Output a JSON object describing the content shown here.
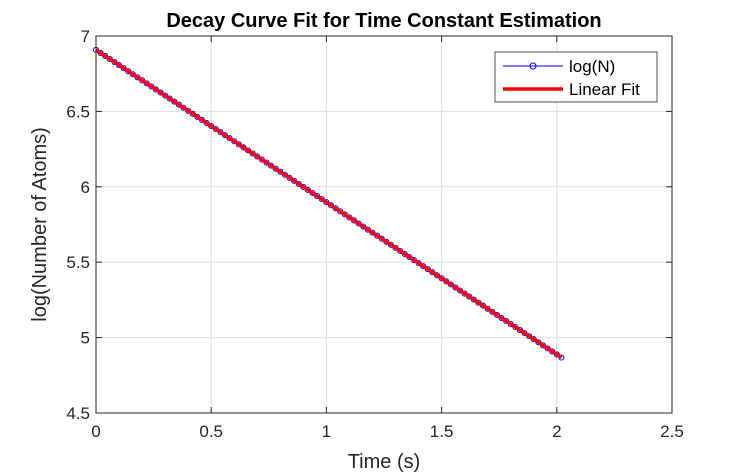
{
  "chart_data": {
    "type": "line",
    "title": "Decay Curve Fit for Time Constant Estimation",
    "xlabel": "Time (s)",
    "ylabel": "log(Number of Atoms)",
    "xlim": [
      0,
      2.5
    ],
    "ylim": [
      4.5,
      7
    ],
    "xticks": [
      0,
      0.5,
      1,
      1.5,
      2,
      2.5
    ],
    "yticks": [
      4.5,
      5,
      5.5,
      6,
      6.5,
      7
    ],
    "xtick_labels": [
      "0",
      "0.5",
      "1",
      "1.5",
      "2",
      "2.5"
    ],
    "ytick_labels": [
      "4.5",
      "5",
      "5.5",
      "6",
      "6.5",
      "7"
    ],
    "grid": true,
    "legend_position": "top-right",
    "series": [
      {
        "name": "log(N)",
        "color": "#0000ff",
        "marker": "circle",
        "x_start": 0,
        "x_end": 2.02,
        "x_step": 0.02,
        "y_start": 6.908,
        "y_end": 4.868
      },
      {
        "name": "Linear Fit",
        "color": "#ff0000",
        "marker": "none",
        "x": [
          0,
          2.02
        ],
        "y": [
          6.908,
          4.868
        ]
      }
    ]
  }
}
